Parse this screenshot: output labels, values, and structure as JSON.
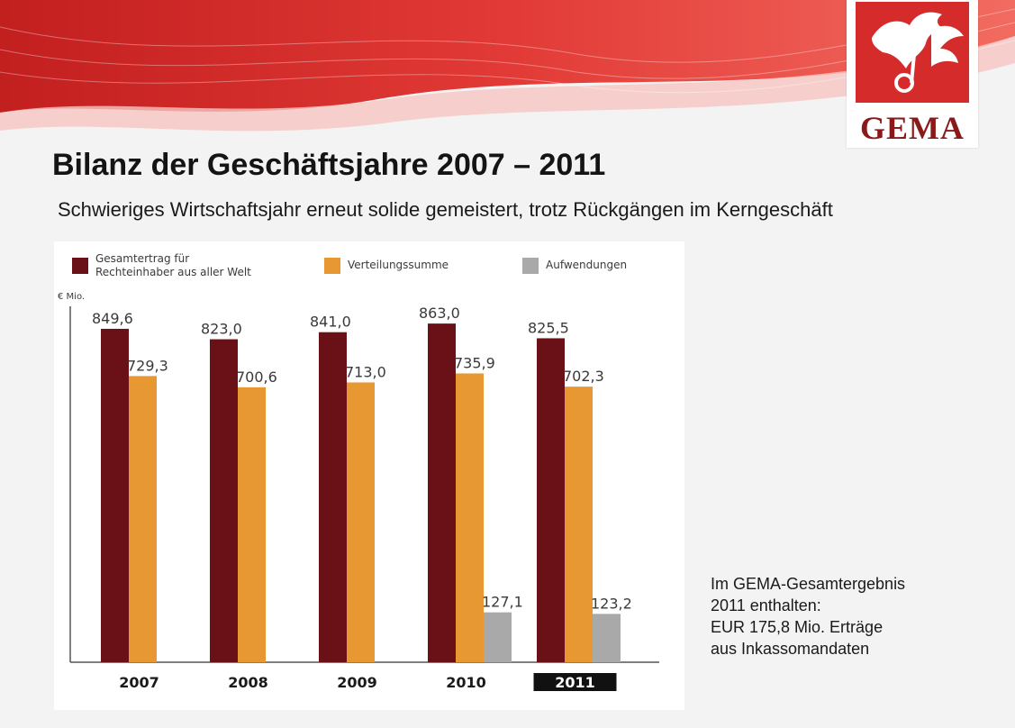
{
  "header": {
    "title": "Bilanz der Geschäftsjahre 2007 – 2011",
    "subtitle": "Schwieriges Wirtschaftsjahr erneut solide gemeistert, trotz Rückgängen im Kerngeschäft",
    "logo_text": "GEMA"
  },
  "note": {
    "lines": [
      "Im GEMA-Gesamtergebnis",
      "2011 enthalten:",
      "EUR 175,8 Mio. Erträge",
      "aus Inkassomandaten"
    ]
  },
  "colors": {
    "gesamtertrag": "#6a1117",
    "verteilungssumme": "#e79833",
    "aufwendungen": "#a9a9a9",
    "brand_red": "#d52b2b",
    "highlight_year_bg": "#111111"
  },
  "icons": {
    "logo": "gema-pegasus-icon"
  },
  "chart_data": {
    "type": "bar",
    "title": "",
    "xlabel": "",
    "ylabel": "€ Mio.",
    "ylim": [
      0,
      900
    ],
    "grid": false,
    "legend_placement": "top",
    "categories": [
      "2007",
      "2008",
      "2009",
      "2010",
      "2011"
    ],
    "highlighted_category": "2011",
    "legend": [
      {
        "lines": [
          "Gesamtertrag für",
          "Rechteinhaber aus aller Welt"
        ]
      },
      {
        "lines": [
          "Verteilungssumme"
        ]
      },
      {
        "lines": [
          "Aufwendungen"
        ]
      }
    ],
    "series": [
      {
        "values": [
          849.6,
          823.0,
          841.0,
          863.0,
          825.5
        ],
        "labels": [
          "849,6",
          "823,0",
          "841,0",
          "863,0",
          "825,5"
        ]
      },
      {
        "values": [
          729.3,
          700.6,
          713.0,
          735.9,
          702.3
        ],
        "labels": [
          "729,3",
          "700,6",
          "713,0",
          "735,9",
          "702,3"
        ]
      },
      {
        "values": [
          null,
          null,
          null,
          127.1,
          123.2
        ],
        "labels": [
          null,
          null,
          null,
          "127,1",
          "123,2"
        ]
      }
    ]
  }
}
